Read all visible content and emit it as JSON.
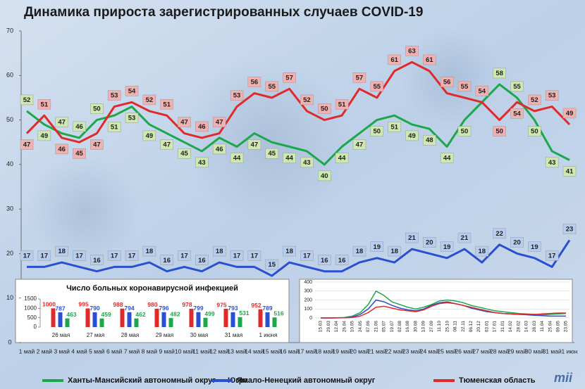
{
  "chart_data": [
    {
      "type": "line",
      "title": "Динамика прироста зарегистрированных случаев COVID-19",
      "categories": [
        "1 май",
        "2 май",
        "3 май",
        "4 май",
        "5 май",
        "6 май",
        "7 май",
        "8 май",
        "9 май",
        "10 май",
        "11 май",
        "12 май",
        "13 май",
        "14 май",
        "15 май",
        "16 май",
        "17 май",
        "18 май",
        "19 май",
        "20 май",
        "21 май",
        "22 май",
        "23 май",
        "24 май",
        "25 май",
        "26 май",
        "27 май",
        "28 май",
        "29 май",
        "30 май",
        "31 май",
        "1 июн"
      ],
      "series": [
        {
          "name": "Ханты-Мансийский автономный округ — Югра",
          "color": "#1aa84a",
          "values": [
            52,
            49,
            47,
            46,
            50,
            51,
            53,
            49,
            47,
            45,
            43,
            46,
            44,
            47,
            45,
            44,
            43,
            40,
            44,
            47,
            50,
            51,
            49,
            48,
            44,
            50,
            54,
            58,
            55,
            50,
            43,
            41
          ]
        },
        {
          "name": "Ямало-Ненецкий автономный округ",
          "color": "#2a4fd1",
          "values": [
            17,
            17,
            18,
            17,
            16,
            17,
            17,
            18,
            16,
            17,
            16,
            18,
            17,
            17,
            15,
            18,
            17,
            16,
            16,
            18,
            19,
            18,
            21,
            20,
            19,
            21,
            18,
            22,
            20,
            19,
            17,
            23
          ]
        },
        {
          "name": "Тюменская область",
          "color": "#e02a2a",
          "values": [
            47,
            51,
            46,
            45,
            47,
            53,
            54,
            52,
            51,
            47,
            46,
            47,
            53,
            56,
            55,
            57,
            52,
            50,
            51,
            57,
            55,
            61,
            63,
            61,
            56,
            55,
            54,
            50,
            54,
            52,
            53,
            49
          ]
        }
      ],
      "ylim": [
        0,
        70
      ],
      "yticks": [
        0,
        10,
        20,
        30,
        40,
        50,
        60,
        70
      ],
      "grid": false
    },
    {
      "type": "bar",
      "title": "Число больных коронавирусной инфекцией",
      "categories": [
        "26 мая",
        "27 мая",
        "28 мая",
        "29 мая",
        "30 мая",
        "31 мая",
        "1 июня"
      ],
      "series": [
        {
          "name": "Тюменская область",
          "color": "#e02a2a",
          "values": [
            1000,
            995,
            988,
            980,
            978,
            975,
            952
          ]
        },
        {
          "name": "Ямало-Ненецкий автономный округ",
          "color": "#2a4fd1",
          "values": [
            787,
            790,
            794,
            796,
            799,
            793,
            789
          ]
        },
        {
          "name": "Ханты-Мансийский автономный округ — Югра",
          "color": "#1aa84a",
          "values": [
            463,
            459,
            462,
            482,
            499,
            531,
            516
          ]
        }
      ],
      "ylim": [
        0,
        1500
      ],
      "yticks": [
        0,
        500,
        1000,
        1500
      ]
    },
    {
      "type": "line",
      "categories": [
        "15.03",
        "29.03",
        "12.04",
        "26.04",
        "10.05",
        "24.05",
        "07.06",
        "21.06",
        "05.07",
        "19.07",
        "02.08",
        "16.08",
        "30.08",
        "13.09",
        "27.09",
        "11.10",
        "25.10",
        "08.11",
        "22.11",
        "06.12",
        "20.12",
        "03.01",
        "17.01",
        "31.01",
        "14.02",
        "28.02",
        "14.03",
        "28.03",
        "11.04",
        "25.04",
        "09.05",
        "23.05"
      ],
      "series": [
        {
          "name": "Ханты-Мансийский автономный округ — Югра",
          "color": "#1aa84a",
          "values": [
            0,
            0,
            2,
            5,
            20,
            60,
            150,
            300,
            250,
            180,
            150,
            120,
            100,
            120,
            150,
            190,
            200,
            190,
            170,
            140,
            120,
            100,
            80,
            70,
            60,
            50,
            45,
            40,
            35,
            40,
            45,
            50
          ]
        },
        {
          "name": "Ямало-Ненецкий автономный округ",
          "color": "#2a4fd1",
          "values": [
            0,
            0,
            1,
            3,
            10,
            40,
            100,
            200,
            180,
            140,
            110,
            90,
            80,
            100,
            140,
            170,
            180,
            160,
            140,
            110,
            90,
            70,
            60,
            50,
            45,
            40,
            35,
            30,
            25,
            20,
            20,
            20
          ]
        },
        {
          "name": "Тюменская область",
          "color": "#e02a2a",
          "values": [
            0,
            0,
            1,
            2,
            5,
            20,
            60,
            120,
            130,
            110,
            90,
            80,
            70,
            90,
            130,
            160,
            170,
            160,
            140,
            120,
            100,
            80,
            60,
            50,
            45,
            40,
            40,
            40,
            45,
            50,
            55,
            55
          ]
        }
      ],
      "ylim": [
        0,
        400
      ],
      "yticks": [
        0,
        100,
        200,
        300,
        400
      ],
      "grid": true
    }
  ],
  "logo": "mii"
}
